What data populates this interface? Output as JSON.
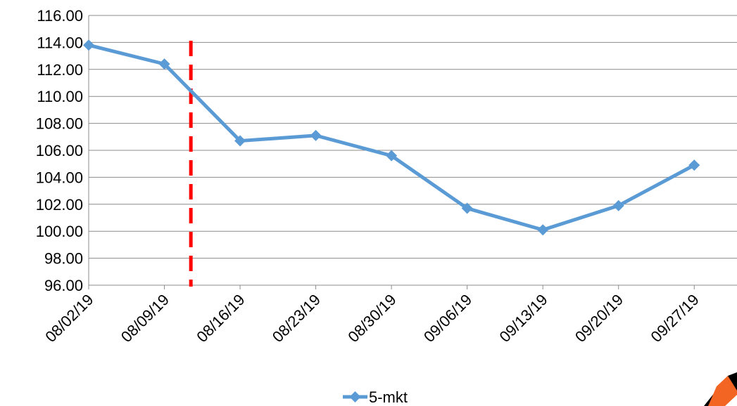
{
  "chart_data": {
    "type": "line",
    "title": "",
    "xlabel": "",
    "ylabel": "",
    "categories": [
      "08/02/19",
      "08/09/19",
      "08/16/19",
      "08/23/19",
      "08/30/19",
      "09/06/19",
      "09/13/19",
      "09/20/19",
      "09/27/19"
    ],
    "series": [
      {
        "name": "5-mkt",
        "values": [
          113.8,
          112.4,
          106.7,
          107.1,
          105.6,
          101.7,
          100.1,
          101.9,
          104.9
        ],
        "color": "#5b9bd5",
        "marker": "diamond"
      }
    ],
    "ylim": [
      96,
      116
    ],
    "yticks": [
      "96.00",
      "98.00",
      "100.00",
      "102.00",
      "104.00",
      "106.00",
      "108.00",
      "110.00",
      "112.00",
      "114.00",
      "116.00"
    ],
    "grid": "horizontal",
    "legend": "bottom",
    "annotations": [
      {
        "type": "vertical-dashed-line",
        "x_position_between": [
          "08/09/19",
          "08/16/19"
        ],
        "x_fraction": 0.35,
        "color": "#ff0000"
      }
    ],
    "logo_colors": [
      "#f26522",
      "#000000"
    ]
  }
}
